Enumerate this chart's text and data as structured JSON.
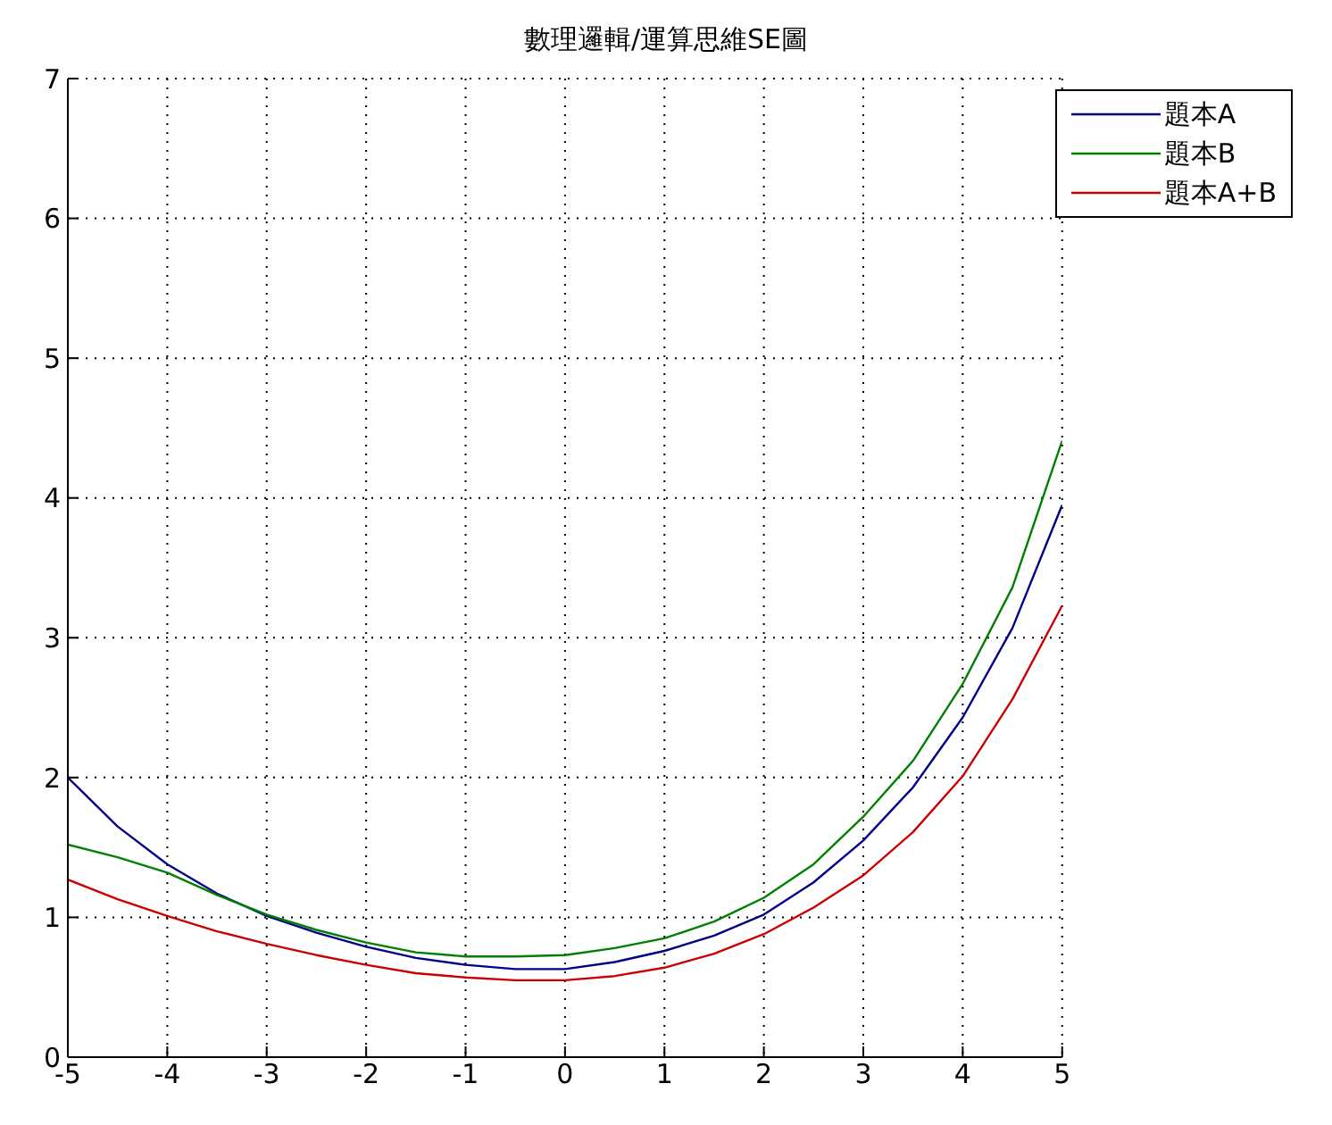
{
  "chart_data": {
    "type": "line",
    "title": "數理邏輯/運算思維SE圖",
    "x": [
      -5,
      -4.5,
      -4,
      -3.5,
      -3,
      -2.5,
      -2,
      -1.5,
      -1,
      -0.5,
      0,
      0.5,
      1,
      1.5,
      2,
      2.5,
      3,
      3.5,
      4,
      4.5,
      5
    ],
    "series": [
      {
        "name": "題本A",
        "color": "#00008b",
        "values": [
          2.0,
          1.65,
          1.38,
          1.17,
          1.01,
          0.89,
          0.79,
          0.71,
          0.66,
          0.63,
          0.63,
          0.68,
          0.76,
          0.87,
          1.02,
          1.25,
          1.55,
          1.93,
          2.43,
          3.07,
          3.95
        ]
      },
      {
        "name": "題本B",
        "color": "#008000",
        "values": [
          1.52,
          1.43,
          1.32,
          1.16,
          1.02,
          0.91,
          0.82,
          0.75,
          0.72,
          0.72,
          0.73,
          0.78,
          0.85,
          0.97,
          1.14,
          1.38,
          1.72,
          2.12,
          2.67,
          3.36,
          4.41
        ]
      },
      {
        "name": "題本A+B",
        "color": "#cc0000",
        "values": [
          1.27,
          1.13,
          1.01,
          0.9,
          0.81,
          0.73,
          0.66,
          0.6,
          0.57,
          0.55,
          0.55,
          0.58,
          0.64,
          0.74,
          0.88,
          1.07,
          1.3,
          1.61,
          2.01,
          2.56,
          3.23
        ]
      }
    ],
    "xlim": [
      -5,
      5
    ],
    "xticks": [
      -5,
      -4,
      -3,
      -2,
      -1,
      0,
      1,
      2,
      3,
      4,
      5
    ],
    "ylim": [
      0,
      7
    ],
    "yticks": [
      0,
      1,
      2,
      3,
      4,
      5,
      6,
      7
    ],
    "grid": true,
    "legend": "top right",
    "marker": "none",
    "line_style": "solid"
  }
}
